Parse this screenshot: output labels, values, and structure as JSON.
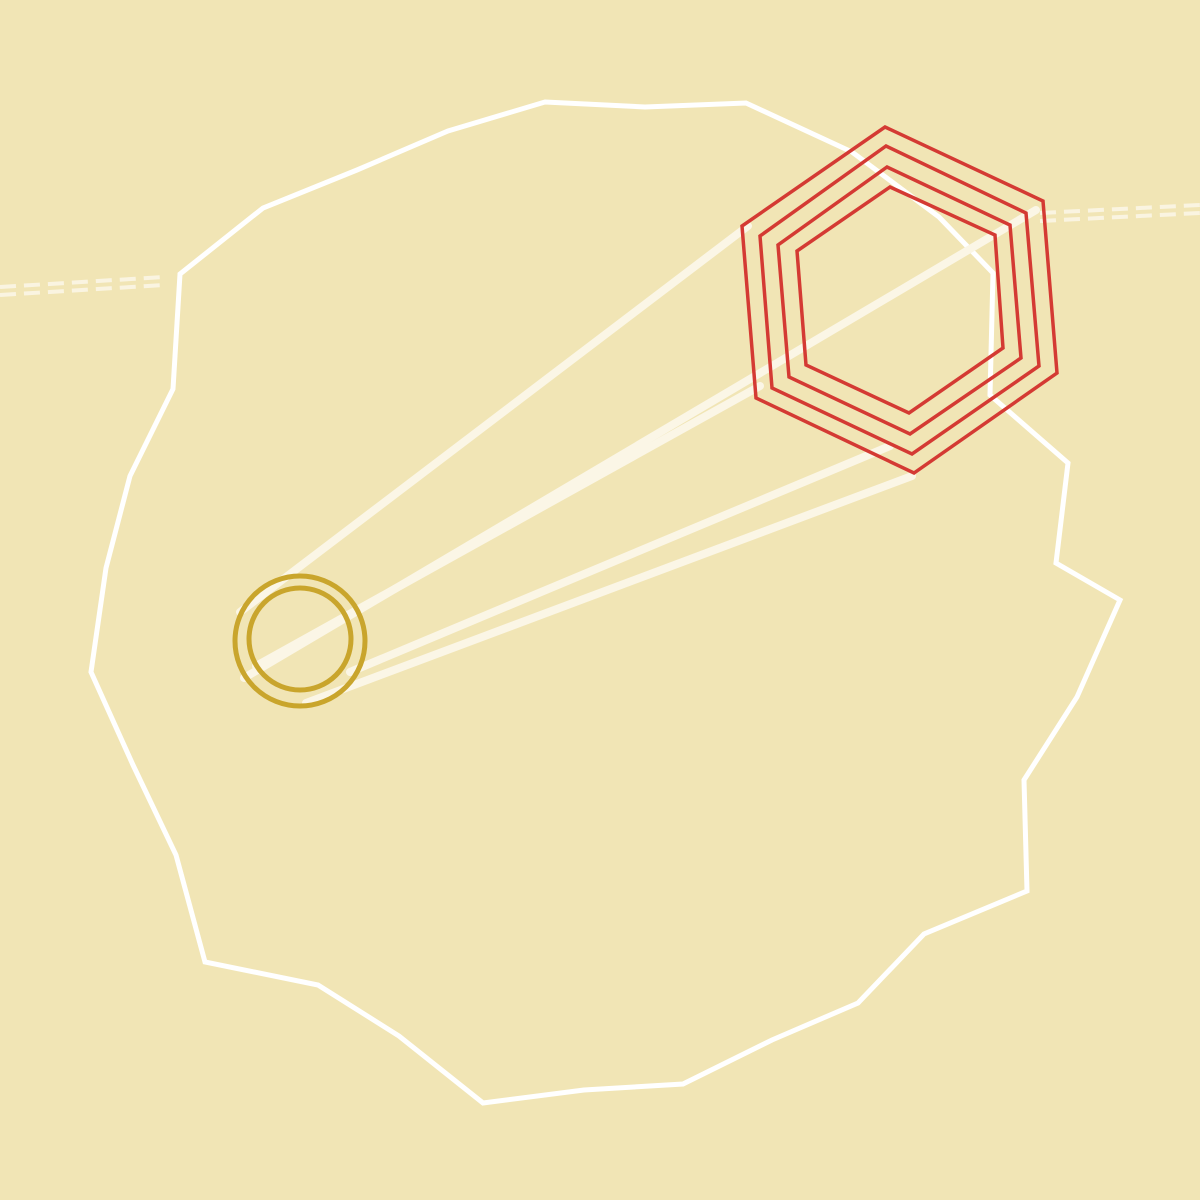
{
  "scene": {
    "colors": {
      "background": "#f1e5b5",
      "outline": "#ffffff",
      "beams": "#fbf6e6",
      "dashed_line": "#fbf6e6",
      "circle_marker": "#c9a52c",
      "hexagon_marker": "#d43a33"
    },
    "shapes": {
      "outline": "irregular-polygon",
      "circle_marker": "double-circle",
      "hexagon_marker": "concentric-hexagons",
      "beams": "light-beams",
      "dashed_line": "dashed-line"
    },
    "counts": {
      "hexagon_rings": 4,
      "circle_rings": 2,
      "beams": 4
    }
  }
}
